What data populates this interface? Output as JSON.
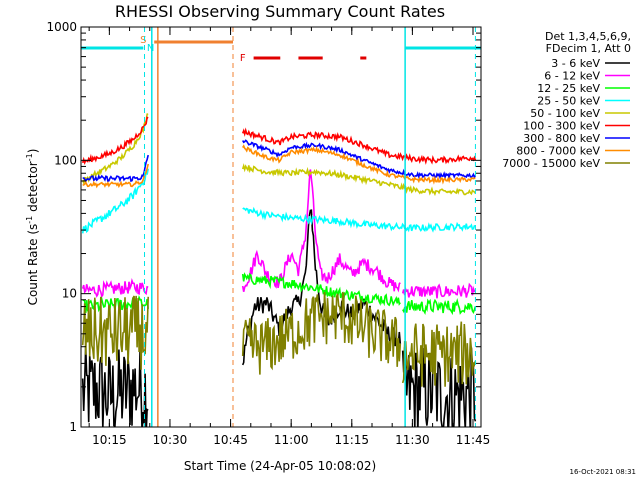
{
  "chart_data": {
    "type": "line",
    "title": "RHESSI Observing Summary Count Rates",
    "xlabel": "Start Time (24-Apr-05 10:08:02)",
    "ylabel_main": "Count Rate (s",
    "ylabel_sup1": "-1",
    "ylabel_mid": " detector",
    "ylabel_sup2": "-1",
    "ylabel_end": ")",
    "y_scale": "log",
    "ylim": [
      1,
      1000
    ],
    "xlim_minutes": [
      10.133,
      11.783
    ],
    "xticks": [
      {
        "t": 10.25,
        "label": "10:15"
      },
      {
        "t": 10.5,
        "label": "10:30"
      },
      {
        "t": 10.75,
        "label": "10:45"
      },
      {
        "t": 11.0,
        "label": "11:00"
      },
      {
        "t": 11.25,
        "label": "11:15"
      },
      {
        "t": 11.5,
        "label": "11:30"
      },
      {
        "t": 11.75,
        "label": "11:45"
      }
    ],
    "yticks": [
      {
        "v": 1,
        "label": "1"
      },
      {
        "v": 10,
        "label": "10"
      },
      {
        "v": 100,
        "label": "100"
      },
      {
        "v": 1000,
        "label": "1000"
      }
    ],
    "legend_header": [
      "Det 1,3,4,5,6,9,",
      "FDecim 1, Att 0"
    ],
    "legend_position": "right",
    "timestamp": "16-Oct-2021 08:31",
    "flag_letters": [
      {
        "t": 10.39,
        "letter": "S",
        "color": "#f08030"
      },
      {
        "t": 10.42,
        "letter": "N",
        "color": "#00e5e5"
      },
      {
        "t": 10.8,
        "letter": "F",
        "color": "#e00000"
      }
    ],
    "flag_bars": [
      {
        "color": "#00e5e5",
        "segments": [
          [
            10.133,
            10.39
          ],
          [
            11.47,
            11.783
          ]
        ]
      },
      {
        "color": "#f08030",
        "segments": [
          [
            10.435,
            10.76
          ]
        ]
      },
      {
        "color": "#e00000",
        "segments": [
          [
            10.845,
            10.955
          ],
          [
            11.03,
            11.13
          ],
          [
            11.285,
            11.31
          ]
        ]
      }
    ],
    "event_lines": [
      {
        "t": 10.395,
        "color": "#00e5e5",
        "style": "dashed"
      },
      {
        "t": 10.425,
        "color": "#00e5e5",
        "style": "solid"
      },
      {
        "t": 10.45,
        "color": "#f08030",
        "style": "solid"
      },
      {
        "t": 10.76,
        "color": "#f08030",
        "style": "dashed"
      },
      {
        "t": 11.47,
        "color": "#00e5e5",
        "style": "solid"
      },
      {
        "t": 11.76,
        "color": "#00e5e5",
        "style": "dashed"
      }
    ],
    "series": [
      {
        "name": "3 - 6 keV",
        "color": "#000000",
        "segments": [
          {
            "t": [
              10.14,
              10.2,
              10.25,
              10.3,
              10.35,
              10.41
            ],
            "v": [
              1.8,
              1.9,
              1.7,
              1.8,
              2.0,
              1.9
            ],
            "noise": 0.35
          },
          {
            "t": [
              10.8,
              10.82,
              10.85,
              10.9,
              10.95,
              11.0,
              11.03,
              11.06,
              11.08,
              11.1,
              11.12,
              11.15,
              11.2,
              11.25,
              11.3,
              11.35,
              11.4,
              11.45
            ],
            "v": [
              3.0,
              5.0,
              8.0,
              8.5,
              5.5,
              8.0,
              8.5,
              14.0,
              50.0,
              16.0,
              8.5,
              6.0,
              8.0,
              7.0,
              8.5,
              6.5,
              5.0,
              4.5
            ],
            "noise": 0.07
          },
          {
            "t": [
              11.46,
              11.55,
              11.65,
              11.76
            ],
            "v": [
              1.8,
              1.9,
              1.7,
              1.8
            ],
            "noise": 0.35
          }
        ]
      },
      {
        "name": "6 - 12 keV",
        "color": "#ff00ff",
        "segments": [
          {
            "t": [
              10.14,
              10.25,
              10.35,
              10.41
            ],
            "v": [
              10.5,
              10.8,
              11.2,
              11.0
            ],
            "noise": 0.05
          },
          {
            "t": [
              10.8,
              10.83,
              10.86,
              10.9,
              10.95,
              11.0,
              11.03,
              11.06,
              11.08,
              11.1,
              11.12,
              11.15,
              11.2,
              11.25,
              11.3,
              11.35,
              11.4,
              11.45
            ],
            "v": [
              11.0,
              14.0,
              20.0,
              14.0,
              12.0,
              20.0,
              15.0,
              28.0,
              90.0,
              28.0,
              14.0,
              13.0,
              18.0,
              14.0,
              17.0,
              15.0,
              12.0,
              11.0
            ],
            "noise": 0.05
          },
          {
            "t": [
              11.46,
              11.6,
              11.76
            ],
            "v": [
              10.5,
              10.3,
              10.5
            ],
            "noise": 0.05
          }
        ]
      },
      {
        "name": "12 - 25 keV",
        "color": "#00ff00",
        "segments": [
          {
            "t": [
              10.14,
              10.25,
              10.35,
              10.41
            ],
            "v": [
              8.0,
              8.2,
              8.5,
              8.4
            ],
            "noise": 0.05
          },
          {
            "t": [
              10.8,
              10.9,
              11.0,
              11.1,
              11.2,
              11.3,
              11.4,
              11.45
            ],
            "v": [
              13.0,
              12.5,
              12.0,
              11.0,
              10.0,
              9.5,
              9.0,
              8.5
            ],
            "noise": 0.04
          },
          {
            "t": [
              11.46,
              11.6,
              11.76
            ],
            "v": [
              8.0,
              8.0,
              8.0
            ],
            "noise": 0.05
          }
        ]
      },
      {
        "name": "25 - 50 keV",
        "color": "#00ffff",
        "segments": [
          {
            "t": [
              10.14,
              10.2,
              10.25,
              10.3,
              10.35,
              10.39,
              10.41
            ],
            "v": [
              30.0,
              35.0,
              40.0,
              46.0,
              55.0,
              70.0,
              85.0
            ],
            "noise": 0.03
          },
          {
            "t": [
              10.8,
              10.9,
              11.0,
              11.1,
              11.2,
              11.3,
              11.4,
              11.5,
              11.6,
              11.76
            ],
            "v": [
              43.0,
              39.0,
              37.0,
              36.0,
              35.0,
              33.0,
              32.0,
              31.0,
              31.5,
              32.0
            ],
            "noise": 0.025
          }
        ]
      },
      {
        "name": "50 - 100 keV",
        "color": "#c8c800",
        "segments": [
          {
            "t": [
              10.14,
              10.2,
              10.25,
              10.3,
              10.35,
              10.39,
              10.41
            ],
            "v": [
              70.0,
              80.0,
              90.0,
              105.0,
              130.0,
              170.0,
              230.0
            ],
            "noise": 0.02
          },
          {
            "t": [
              10.8,
              10.9,
              11.0,
              11.1,
              11.2,
              11.3,
              11.4,
              11.5,
              11.6,
              11.76
            ],
            "v": [
              90.0,
              82.0,
              80.0,
              82.0,
              78.0,
              72.0,
              66.0,
              60.0,
              58.0,
              58.0
            ],
            "noise": 0.02
          }
        ]
      },
      {
        "name": "100 - 300 keV",
        "color": "#ff0000",
        "segments": [
          {
            "t": [
              10.14,
              10.2,
              10.25,
              10.3,
              10.35,
              10.39,
              10.41
            ],
            "v": [
              97.0,
              105.0,
              112.0,
              125.0,
              145.0,
              175.0,
              210.0
            ],
            "noise": 0.02
          },
          {
            "t": [
              10.8,
              10.9,
              10.95,
              11.0,
              11.1,
              11.2,
              11.3,
              11.4,
              11.5,
              11.6,
              11.76
            ],
            "v": [
              165.0,
              145.0,
              135.0,
              150.0,
              155.0,
              150.0,
              130.0,
              110.0,
              103.0,
              100.0,
              105.0
            ],
            "noise": 0.02
          }
        ]
      },
      {
        "name": "300 - 800 keV",
        "color": "#0000ff",
        "segments": [
          {
            "t": [
              10.14,
              10.25,
              10.35,
              10.39,
              10.41
            ],
            "v": [
              73.0,
              73.0,
              73.0,
              75.0,
              110.0
            ],
            "noise": 0.02
          },
          {
            "t": [
              10.8,
              10.9,
              10.95,
              11.0,
              11.1,
              11.2,
              11.3,
              11.4,
              11.5,
              11.6,
              11.76
            ],
            "v": [
              140.0,
              120.0,
              110.0,
              125.0,
              130.0,
              120.0,
              100.0,
              85.0,
              78.0,
              77.0,
              77.0
            ],
            "noise": 0.015
          }
        ]
      },
      {
        "name": "800 - 7000 keV",
        "color": "#ff8c00",
        "segments": [
          {
            "t": [
              10.14,
              10.25,
              10.35,
              10.39,
              10.41
            ],
            "v": [
              66.0,
              66.0,
              66.0,
              70.0,
              95.0
            ],
            "noise": 0.015
          },
          {
            "t": [
              10.8,
              10.9,
              10.95,
              11.0,
              11.1,
              11.2,
              11.3,
              11.4,
              11.5,
              11.6,
              11.76
            ],
            "v": [
              125.0,
              105.0,
              100.0,
              115.0,
              120.0,
              110.0,
              92.0,
              78.0,
              72.0,
              71.0,
              72.0
            ],
            "noise": 0.015
          }
        ]
      },
      {
        "name": "7000 - 15000 keV",
        "color": "#808000",
        "segments": [
          {
            "t": [
              10.14,
              10.25,
              10.35,
              10.41
            ],
            "v": [
              5.0,
              5.0,
              5.2,
              5.0
            ],
            "noise": 0.28
          },
          {
            "t": [
              10.8,
              10.9,
              11.0,
              11.1,
              11.2,
              11.3,
              11.4,
              11.45
            ],
            "v": [
              4.0,
              4.0,
              5.0,
              6.5,
              7.0,
              5.5,
              4.5,
              4.0
            ],
            "noise": 0.22
          },
          {
            "t": [
              11.46,
              11.6,
              11.76
            ],
            "v": [
              3.5,
              3.5,
              3.5
            ],
            "noise": 0.25
          }
        ]
      }
    ]
  }
}
